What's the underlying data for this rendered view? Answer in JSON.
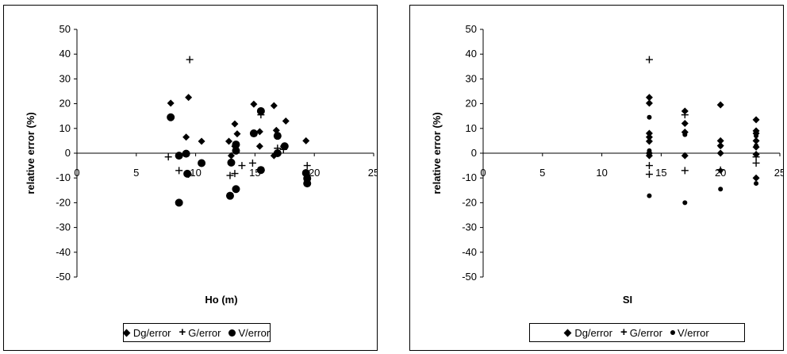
{
  "chart_data": [
    {
      "type": "scatter",
      "xlabel": "Ho (m)",
      "ylabel": "relative error (%)",
      "xlim": [
        0,
        25
      ],
      "ylim": [
        -50,
        50
      ],
      "x_ticks": [
        "0",
        "5",
        "10",
        "15",
        "20",
        "25"
      ],
      "y_ticks": [
        "50",
        "40",
        "30",
        "20",
        "10",
        "0",
        "-10",
        "-20",
        "-30",
        "-40",
        "-50"
      ],
      "legend_position": "bottom",
      "series": [
        {
          "name": "Dg/error",
          "marker": "diamond",
          "points": [
            [
              7.9,
              20.2
            ],
            [
              9.2,
              6.5
            ],
            [
              9.4,
              22.5
            ],
            [
              10.5,
              4.8
            ],
            [
              12.8,
              4.8
            ],
            [
              13.3,
              11.8
            ],
            [
              13.5,
              7.8
            ],
            [
              13.3,
              2.8
            ],
            [
              14.9,
              8.0
            ],
            [
              14.9,
              19.8
            ],
            [
              15.4,
              8.7
            ],
            [
              15.4,
              2.8
            ],
            [
              16.6,
              19.2
            ],
            [
              16.8,
              9.2
            ],
            [
              16.9,
              7.0
            ],
            [
              16.6,
              -1.0
            ],
            [
              17.6,
              13.0
            ],
            [
              17.4,
              2.8
            ],
            [
              19.3,
              5.0
            ],
            [
              13.0,
              -1.0
            ]
          ]
        },
        {
          "name": "G/error",
          "marker": "plus",
          "points": [
            [
              7.7,
              -1.5
            ],
            [
              8.6,
              -7.0
            ],
            [
              9.5,
              37.8
            ],
            [
              9.4,
              -8.5
            ],
            [
              12.9,
              -9.0
            ],
            [
              13.3,
              -8.2
            ],
            [
              13.9,
              -5.0
            ],
            [
              14.8,
              -4.0
            ],
            [
              15.5,
              15.5
            ],
            [
              16.9,
              2.0
            ],
            [
              17.4,
              1.5
            ],
            [
              19.4,
              -5.0
            ],
            [
              19.4,
              -10.0
            ]
          ]
        },
        {
          "name": "V/error",
          "marker": "circle",
          "points": [
            [
              7.9,
              14.5
            ],
            [
              8.6,
              -1.0
            ],
            [
              9.2,
              -0.2
            ],
            [
              9.3,
              -8.3
            ],
            [
              10.5,
              -4.0
            ],
            [
              8.6,
              -20.0
            ],
            [
              13.0,
              -3.8
            ],
            [
              12.9,
              -17.2
            ],
            [
              13.4,
              -14.5
            ],
            [
              13.4,
              3.5
            ],
            [
              13.4,
              1.0
            ],
            [
              14.9,
              8.0
            ],
            [
              15.5,
              17.0
            ],
            [
              15.5,
              -6.8
            ],
            [
              16.9,
              7.0
            ],
            [
              16.9,
              0.0
            ],
            [
              17.5,
              2.8
            ],
            [
              19.3,
              -8.0
            ],
            [
              19.4,
              -12.2
            ],
            [
              19.4,
              -10.2
            ]
          ]
        }
      ]
    },
    {
      "type": "scatter",
      "xlabel": "SI",
      "ylabel": "relative error (%)",
      "xlim": [
        0,
        25
      ],
      "ylim": [
        -50,
        50
      ],
      "x_ticks": [
        "0",
        "5",
        "10",
        "15",
        "20",
        "25"
      ],
      "y_ticks": [
        "50",
        "40",
        "30",
        "20",
        "10",
        "0",
        "-10",
        "-20",
        "-30",
        "-40",
        "-50"
      ],
      "legend_position": "bottom",
      "series": [
        {
          "name": "Dg/error",
          "marker": "diamond",
          "points": [
            [
              14.0,
              22.5
            ],
            [
              14.0,
              20.2
            ],
            [
              14.0,
              8.0
            ],
            [
              14.0,
              6.5
            ],
            [
              14.0,
              4.8
            ],
            [
              14.0,
              0.0
            ],
            [
              14.0,
              -1.0
            ],
            [
              17.0,
              17.0
            ],
            [
              17.0,
              12.0
            ],
            [
              17.0,
              8.5
            ],
            [
              17.0,
              -1.0
            ],
            [
              20.0,
              19.5
            ],
            [
              20.0,
              5.0
            ],
            [
              20.0,
              3.0
            ],
            [
              20.0,
              0.0
            ],
            [
              23.0,
              13.5
            ],
            [
              23.0,
              9.0
            ],
            [
              23.0,
              8.0
            ],
            [
              23.0,
              5.0
            ],
            [
              23.0,
              2.5
            ],
            [
              23.0,
              -0.5
            ],
            [
              23.0,
              -10.0
            ]
          ]
        },
        {
          "name": "G/error",
          "marker": "plus",
          "points": [
            [
              14.0,
              37.8
            ],
            [
              14.0,
              -5.0
            ],
            [
              14.0,
              -8.5
            ],
            [
              17.0,
              15.5
            ],
            [
              17.0,
              -7.0
            ],
            [
              20.0,
              -6.8
            ],
            [
              23.0,
              -1.5
            ],
            [
              23.0,
              -4.0
            ]
          ]
        },
        {
          "name": "V/error",
          "marker": "circle",
          "points": [
            [
              14.0,
              14.5
            ],
            [
              14.0,
              1.0
            ],
            [
              14.0,
              -17.2
            ],
            [
              17.0,
              7.5
            ],
            [
              17.0,
              8.3
            ],
            [
              17.0,
              -20.0
            ],
            [
              20.0,
              2.8
            ],
            [
              20.0,
              -7.0
            ],
            [
              20.0,
              -14.5
            ],
            [
              23.0,
              7.0
            ],
            [
              23.0,
              3.0
            ],
            [
              23.0,
              -12.2
            ]
          ]
        }
      ]
    }
  ]
}
